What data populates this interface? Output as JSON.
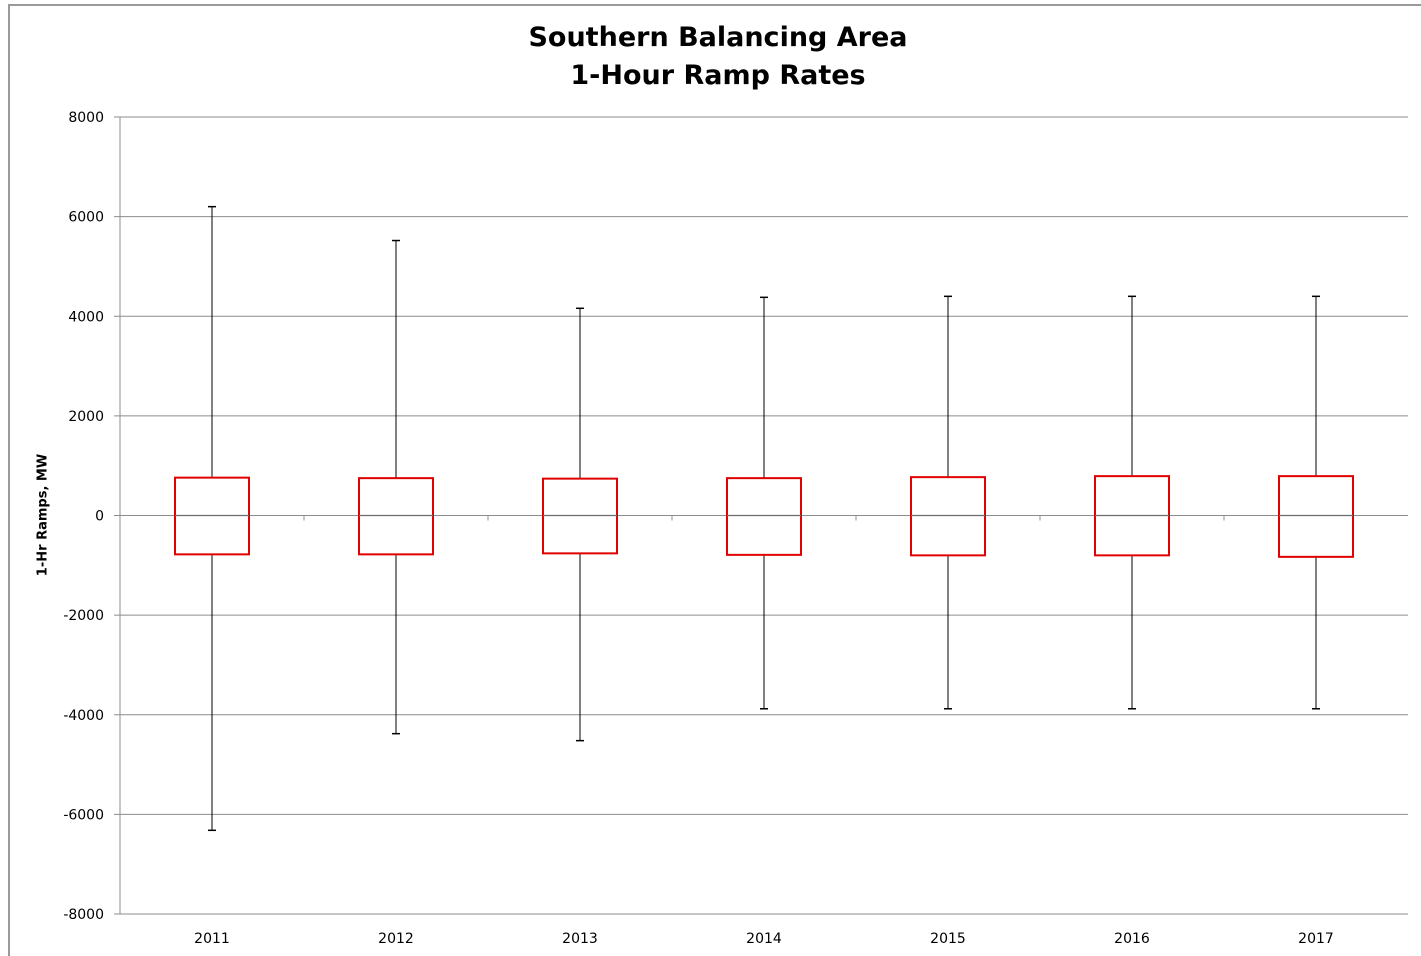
{
  "chart_data": {
    "type": "box",
    "title": "Southern Balancing Area",
    "subtitle": "1-Hour Ramp Rates",
    "xlabel": "",
    "ylabel": "1-Hr Ramps, MW",
    "ylim": [
      -8000,
      8000
    ],
    "yticks": [
      8000,
      6000,
      4000,
      2000,
      0,
      -2000,
      -4000,
      -6000,
      -8000
    ],
    "grid": true,
    "categories": [
      "2011",
      "2012",
      "2013",
      "2014",
      "2015",
      "2016",
      "2017"
    ],
    "boxes": [
      {
        "category": "2011",
        "whisker_high": 6200,
        "q3": 760,
        "median": 0,
        "q1": -780,
        "whisker_low": -6320
      },
      {
        "category": "2012",
        "whisker_high": 5520,
        "q3": 750,
        "median": 0,
        "q1": -780,
        "whisker_low": -4380
      },
      {
        "category": "2013",
        "whisker_high": 4160,
        "q3": 740,
        "median": 0,
        "q1": -760,
        "whisker_low": -4520
      },
      {
        "category": "2014",
        "whisker_high": 4380,
        "q3": 750,
        "median": 0,
        "q1": -790,
        "whisker_low": -3880
      },
      {
        "category": "2015",
        "whisker_high": 4400,
        "q3": 770,
        "median": 0,
        "q1": -800,
        "whisker_low": -3880
      },
      {
        "category": "2016",
        "whisker_high": 4400,
        "q3": 790,
        "median": 0,
        "q1": -800,
        "whisker_low": -3880
      },
      {
        "category": "2017",
        "whisker_high": 4400,
        "q3": 790,
        "median": 0,
        "q1": -830,
        "whisker_low": -3880
      }
    ],
    "colors": {
      "box": "#e30000",
      "whisker": "#000000",
      "grid": "#8c8c8c"
    }
  }
}
